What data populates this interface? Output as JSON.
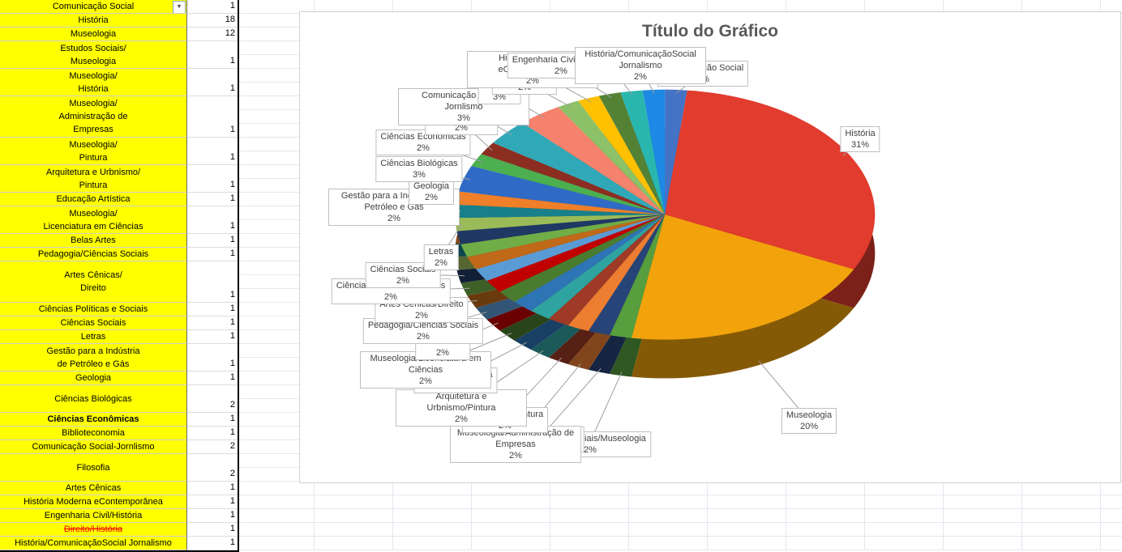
{
  "app": {
    "kind": "spreadsheet-with-embedded-chart"
  },
  "table": {
    "rows": [
      {
        "label": "Comunicação Social",
        "value": 1,
        "dropdown": true
      },
      {
        "label": "História",
        "value": 18
      },
      {
        "label": "Museologia",
        "value": 12
      },
      {
        "label": "Estudos Sociais/\nMuseologia",
        "value": 1
      },
      {
        "label": "Museologia/\nHistória",
        "value": 1
      },
      {
        "label": "Museologia/\nAdministração de\nEmpresas",
        "value": 1
      },
      {
        "label": "Museologia/\nPintura",
        "value": 1
      },
      {
        "label": "Arquitetura e Urbnismo/\nPintura",
        "value": 1
      },
      {
        "label": "Educação Artística",
        "value": 1
      },
      {
        "label": "Museologia/\nLicenciatura em Ciências",
        "value": 1
      },
      {
        "label": "Belas Artes",
        "value": 1
      },
      {
        "label": "Pedagogia/Ciências Sociais",
        "value": 1
      },
      {
        "label": "Artes Cênicas/\nDireito",
        "value": 1,
        "tall": true
      },
      {
        "label": "Ciências Políticas e Sociais",
        "value": 1
      },
      {
        "label": "Ciências Sociais",
        "value": 1
      },
      {
        "label": "Letras",
        "value": 1
      },
      {
        "label": "Gestão para a Indústria\nde Petróleo e Gás",
        "value": 1
      },
      {
        "label": "Geologia",
        "value": 1
      },
      {
        "label": "Ciências Biológicas",
        "value": 2,
        "tall": true
      },
      {
        "label": "Ciências Econômicas",
        "value": 1,
        "bold": true
      },
      {
        "label": "Biblioteconomia",
        "value": 1
      },
      {
        "label": "Comunicação Social-Jornlismo",
        "value": 2
      },
      {
        "label": "Filosofia",
        "value": 2,
        "tall": true
      },
      {
        "label": "Artes Cênicas",
        "value": 1
      },
      {
        "label": "História Moderna eContemporânea",
        "value": 1
      },
      {
        "label": "Engenharia Civil/História",
        "value": 1
      },
      {
        "label": "Direito/História",
        "value": 1,
        "strike": true
      },
      {
        "label": "História/ComunicaçãoSocial Jornalismo",
        "value": 1
      }
    ]
  },
  "chart_data": {
    "type": "pie",
    "effect": "3d",
    "title": "Título do Gráfico",
    "legend": "none",
    "categories": [
      "Comunicação Social",
      "História",
      "Museologia",
      "Estudos Sociais/Museologia",
      "Museologia/História",
      "Museologia/Administração de Empresas",
      "Museologia/Pintura",
      "Arquitetura e Urbnismo/Pintura",
      "Educação Artística",
      "Museologia/Licenciatura em Ciências",
      "Belas Artes",
      "Pedagogia/Ciências Sociais",
      "Artes Cênicas/Direito",
      "Ciências Políticas e Sociais",
      "Ciências Sociais",
      "Letras",
      "Gestão para a Indústria de Petróleo e Gás",
      "Geologia",
      "Ciências Biológicas",
      "Ciências Econômicas",
      "Biblioteconomia",
      "Comunicação Social-Jornlismo",
      "Filosofia",
      "Artes Cênicas",
      "História Moderna eContemporânea",
      "Engenharia Civil/História",
      "Direito/História",
      "História/ComunicaçãoSocial Jornalismo"
    ],
    "values": [
      1,
      18,
      12,
      1,
      1,
      1,
      1,
      1,
      1,
      1,
      1,
      1,
      1,
      1,
      1,
      1,
      1,
      1,
      2,
      1,
      1,
      2,
      2,
      1,
      1,
      1,
      1,
      1
    ],
    "percent_labels": [
      "2%",
      "31%",
      "20%",
      "2%",
      "2%",
      "2%",
      "2%",
      "2%",
      "2%",
      "2%",
      "2%",
      "2%",
      "2%",
      "2%",
      "2%",
      "2%",
      "2%",
      "2%",
      "3%",
      "2%",
      "2%",
      "3%",
      "3%",
      "2%",
      "2%",
      "2%",
      "2%",
      "2%"
    ],
    "colors": [
      "#4472C4",
      "#E23C2E",
      "#F2A30B",
      "#569E3E",
      "#264478",
      "#ED7D31",
      "#9E3A26",
      "#2FA3A0",
      "#2E75B6",
      "#4A7C2F",
      "#C00000",
      "#5B9BD5",
      "#BF6919",
      "#70AD47",
      "#203864",
      "#9BBB59",
      "#17808A",
      "#F07F29",
      "#2F6BC6",
      "#4CAF50",
      "#8B2E21",
      "#31A8B8",
      "#F4826C",
      "#8CC168",
      "#FFC000",
      "#548235",
      "#29B6AF",
      "#1E88E5"
    ]
  }
}
